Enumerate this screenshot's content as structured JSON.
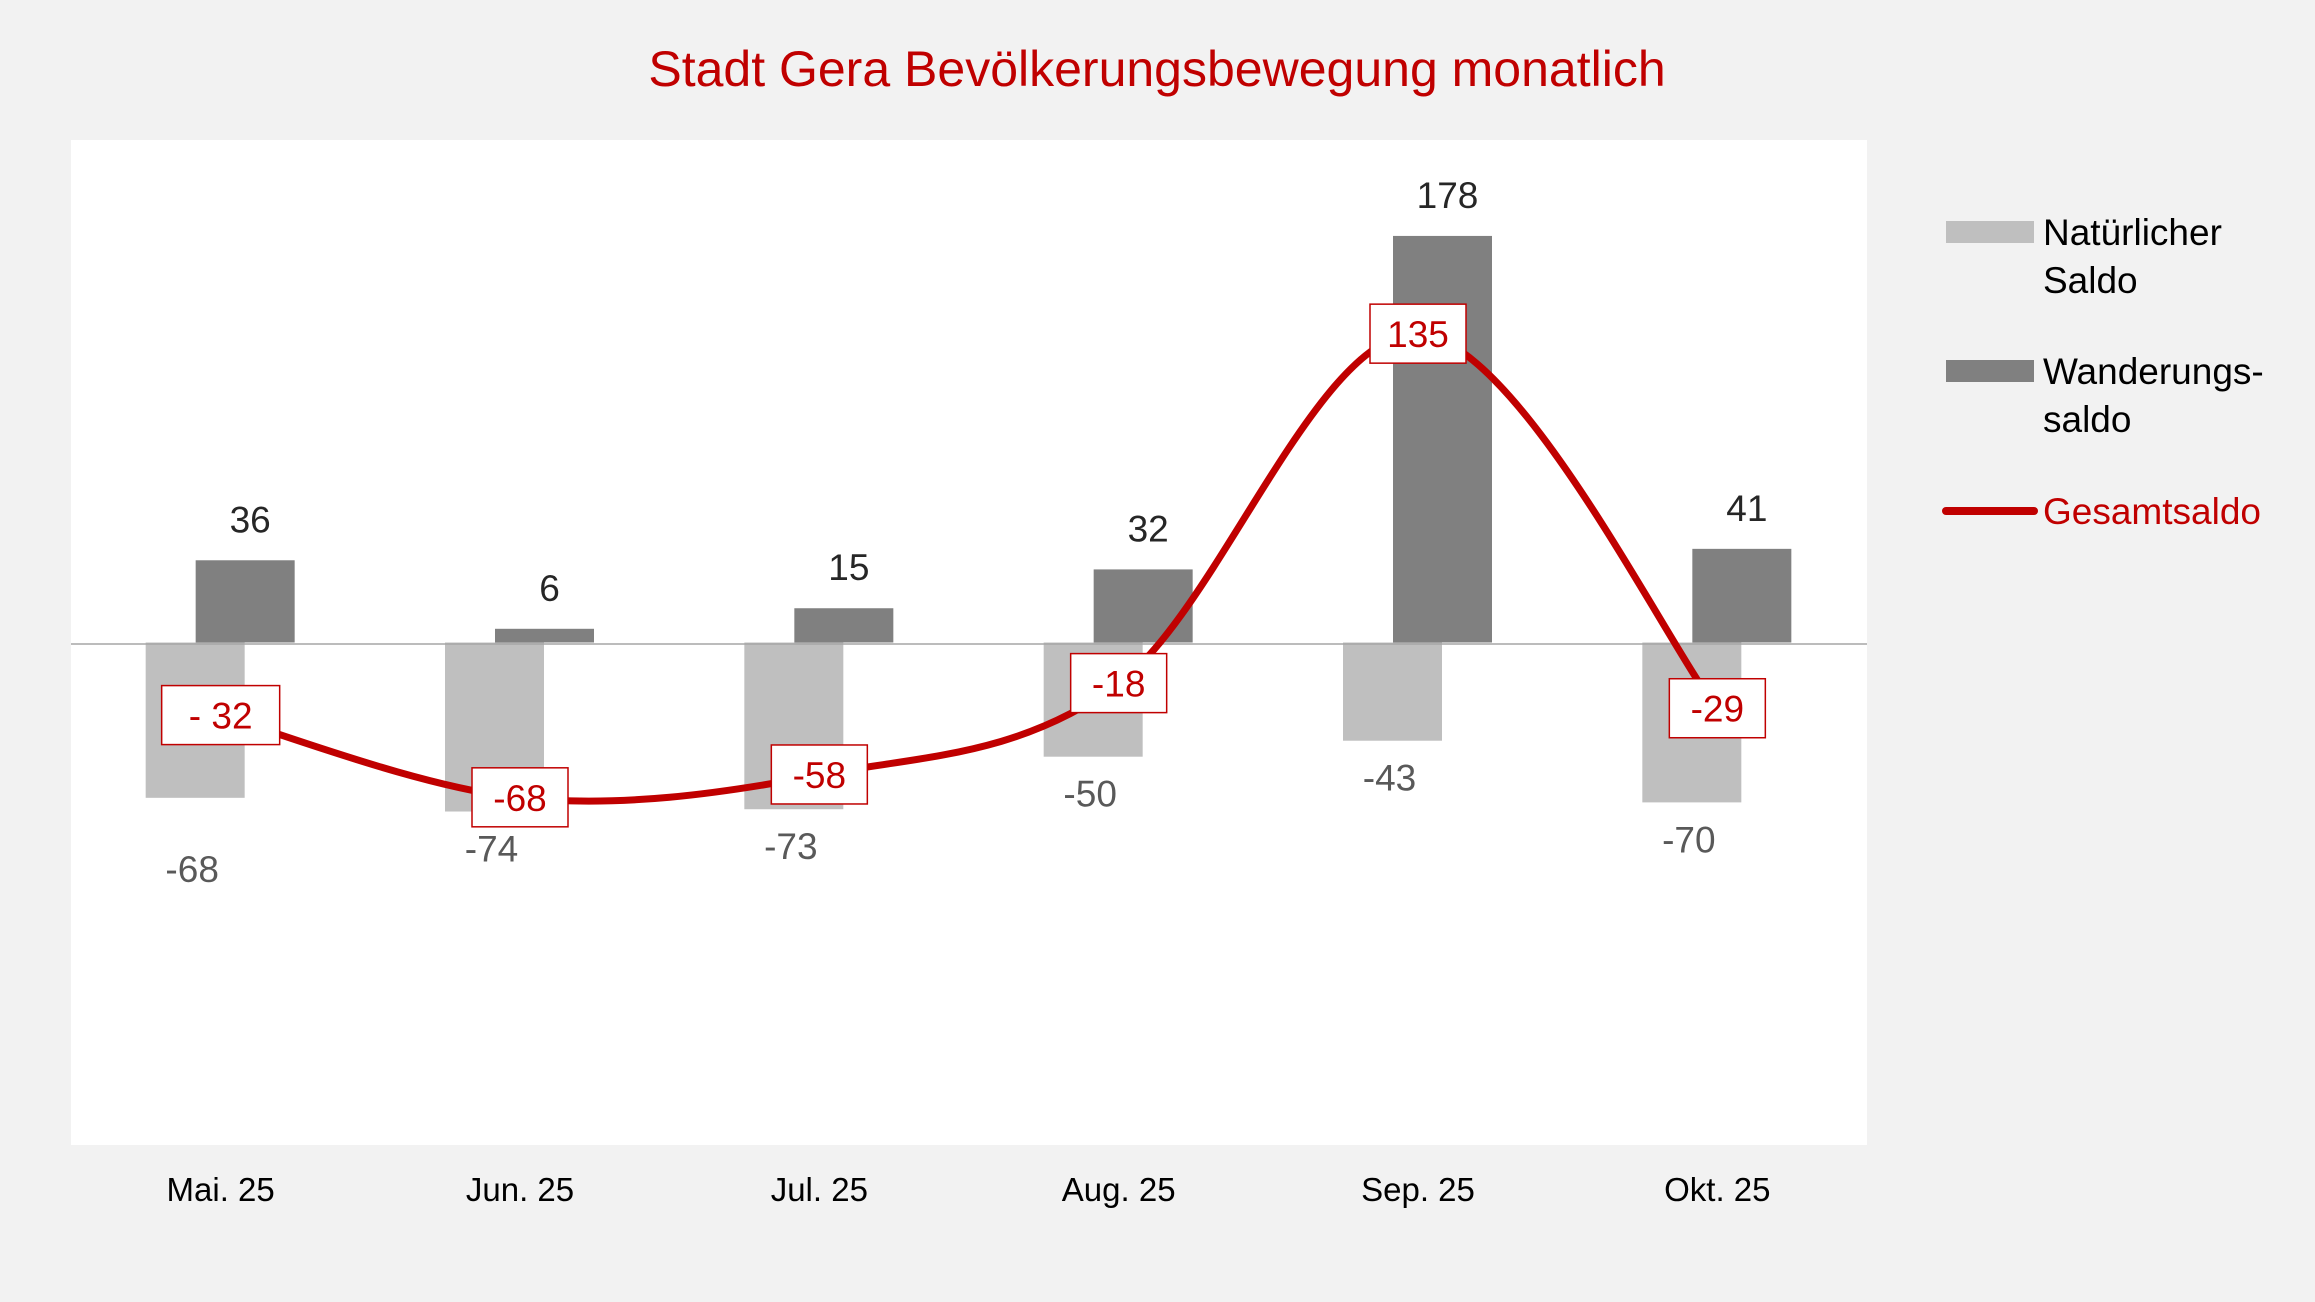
{
  "chart_data": {
    "type": "bar",
    "title": "Stadt Gera Bevölkerungsbewegung monatlich",
    "categories": [
      "Mai. 25",
      "Jun. 25",
      "Jul. 25",
      "Aug. 25",
      "Sep. 25",
      "Okt. 25"
    ],
    "ylim": [
      -220,
      220
    ],
    "grid": false,
    "legend_position": "right",
    "series": [
      {
        "name": "Natürlicher Saldo",
        "legend_lines": [
          "Natürlicher",
          "Saldo"
        ],
        "type": "bar",
        "color": "#bfbfbf",
        "label_color": "#595959",
        "values": [
          -68,
          -74,
          -73,
          -50,
          -43,
          -70
        ],
        "labels": [
          "-68",
          "-74",
          "-73",
          "-50",
          "-43",
          "-70"
        ]
      },
      {
        "name": "Wanderungssaldo",
        "legend_lines": [
          "Wanderungs-",
          "saldo"
        ],
        "type": "bar",
        "color": "#808080",
        "label_color": "#262626",
        "values": [
          36,
          6,
          15,
          32,
          178,
          41
        ],
        "labels": [
          "36",
          "6",
          "15",
          "32",
          "178",
          "41"
        ]
      },
      {
        "name": "Gesamtsaldo",
        "legend_lines": [
          "Gesamtsaldo"
        ],
        "type": "line",
        "color": "#c00000",
        "smooth": true,
        "values": [
          -32,
          -68,
          -58,
          -18,
          135,
          -29
        ],
        "labels": [
          "- 32",
          "-68",
          "-58",
          "-18",
          "135",
          "-29"
        ]
      }
    ]
  }
}
